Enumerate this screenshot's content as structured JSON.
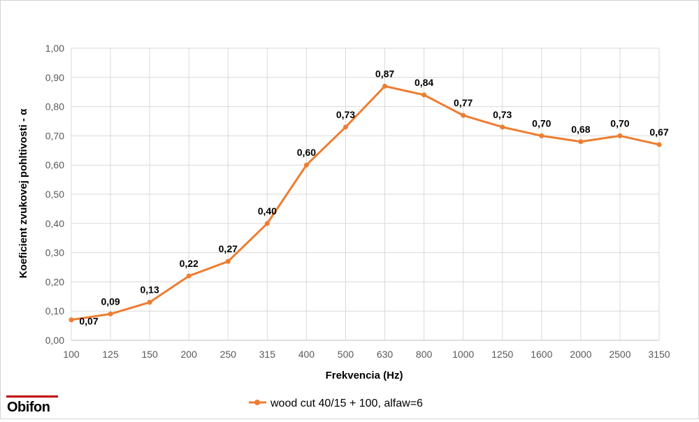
{
  "chart_data": {
    "type": "line",
    "categories": [
      "100",
      "125",
      "150",
      "200",
      "250",
      "315",
      "400",
      "500",
      "630",
      "800",
      "1000",
      "1250",
      "1600",
      "2000",
      "2500",
      "3150"
    ],
    "series": [
      {
        "name": "wood cut 40/15 + 100, alfaw=6",
        "values": [
          0.07,
          0.09,
          0.13,
          0.22,
          0.27,
          0.4,
          0.6,
          0.73,
          0.87,
          0.84,
          0.77,
          0.73,
          0.7,
          0.68,
          0.7,
          0.67
        ],
        "labels": [
          "0,07",
          "0,09",
          "0,13",
          "0,22",
          "0,27",
          "0,40",
          "0,60",
          "0,73",
          "0,87",
          "0,84",
          "0,77",
          "0,73",
          "0,70",
          "0,68",
          "0,70",
          "0,67"
        ],
        "color": "#ED7D31"
      }
    ],
    "xlabel": "Frekvencia (Hz)",
    "ylabel": "Koeficient zvukovej pohltivosti - α",
    "ylim": [
      0,
      1
    ],
    "yticks": [
      "0,00",
      "0,10",
      "0,20",
      "0,30",
      "0,40",
      "0,50",
      "0,60",
      "0,70",
      "0,80",
      "0,90",
      "1,00"
    ],
    "grid": true,
    "legend_position": "bottom"
  },
  "logo": {
    "text": "Obifon",
    "accent_color": "#C00000"
  },
  "colors": {
    "grid": "#D9D9D9",
    "axis": "#BFBFBF",
    "tick_text": "#595959"
  }
}
